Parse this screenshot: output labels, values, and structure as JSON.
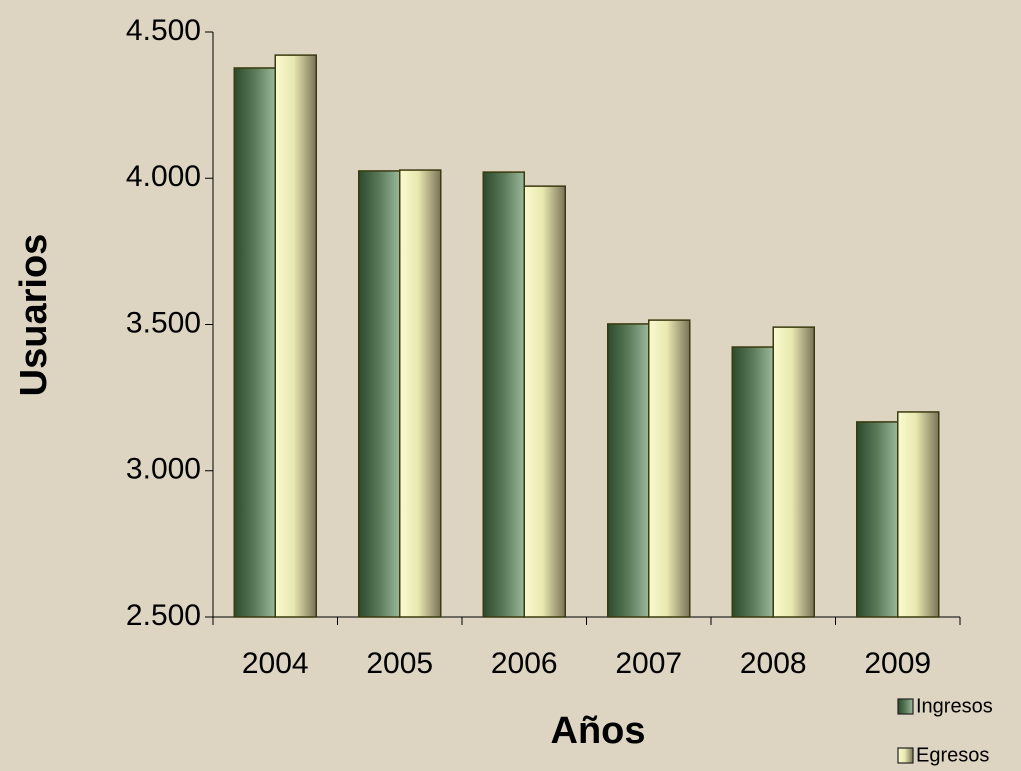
{
  "chart_data": {
    "type": "bar",
    "xlabel": "Años",
    "ylabel": "Usuarios",
    "categories": [
      "2004",
      "2005",
      "2006",
      "2007",
      "2008",
      "2009"
    ],
    "series": [
      {
        "name": "Ingresos",
        "color": "#5a7a5a",
        "values": [
          4377,
          4025,
          4021,
          3502,
          3423,
          3167
        ]
      },
      {
        "name": "Egresos",
        "color": "#e8e8b0",
        "values": [
          4421,
          4028,
          3973,
          3515,
          3491,
          3201
        ]
      }
    ],
    "ylim": [
      2500,
      4500
    ],
    "yticks": [
      {
        "value": 2500,
        "label": "2.500"
      },
      {
        "value": 3000,
        "label": "3.000"
      },
      {
        "value": 3500,
        "label": "3.500"
      },
      {
        "value": 4000,
        "label": "4.000"
      },
      {
        "value": 4500,
        "label": "4.500"
      }
    ],
    "legend": "bottom-right"
  }
}
